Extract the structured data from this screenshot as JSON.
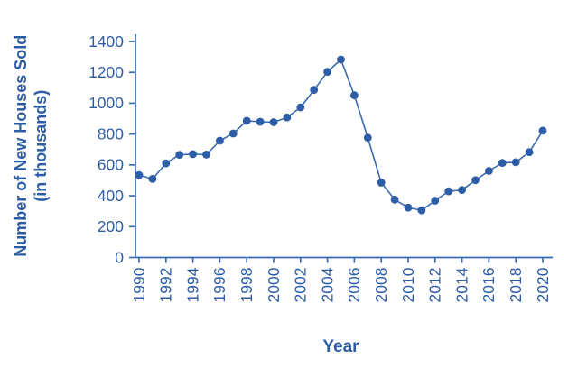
{
  "chart_data": {
    "type": "line",
    "title": "",
    "xlabel": "Year",
    "ylabel": "Number of New Houses Sold (in thousands)",
    "ylabel_lines": [
      "Number of New Houses Sold",
      "(in thousands)"
    ],
    "x": [
      1990,
      1991,
      1992,
      1993,
      1994,
      1995,
      1996,
      1997,
      1998,
      1999,
      2000,
      2001,
      2002,
      2003,
      2004,
      2005,
      2006,
      2007,
      2008,
      2009,
      2010,
      2011,
      2012,
      2013,
      2014,
      2015,
      2016,
      2017,
      2018,
      2019,
      2020
    ],
    "values": [
      534,
      509,
      610,
      666,
      670,
      667,
      757,
      804,
      886,
      880,
      877,
      908,
      973,
      1086,
      1203,
      1283,
      1051,
      776,
      485,
      375,
      323,
      306,
      368,
      429,
      437,
      501,
      561,
      613,
      617,
      683,
      822
    ],
    "ylim": [
      0,
      1400
    ],
    "yticks": [
      0,
      200,
      400,
      600,
      800,
      1000,
      1200,
      1400
    ],
    "xtick_years": [
      1990,
      1992,
      1994,
      1996,
      1998,
      2000,
      2002,
      2004,
      2006,
      2008,
      2010,
      2012,
      2014,
      2016,
      2018,
      2020
    ],
    "grid": false,
    "legend": "none",
    "colors": {
      "line": "#3a6bb0",
      "marker": "#2d5da6",
      "axis": "#3a6bb0",
      "text": "#2d5da6"
    }
  }
}
